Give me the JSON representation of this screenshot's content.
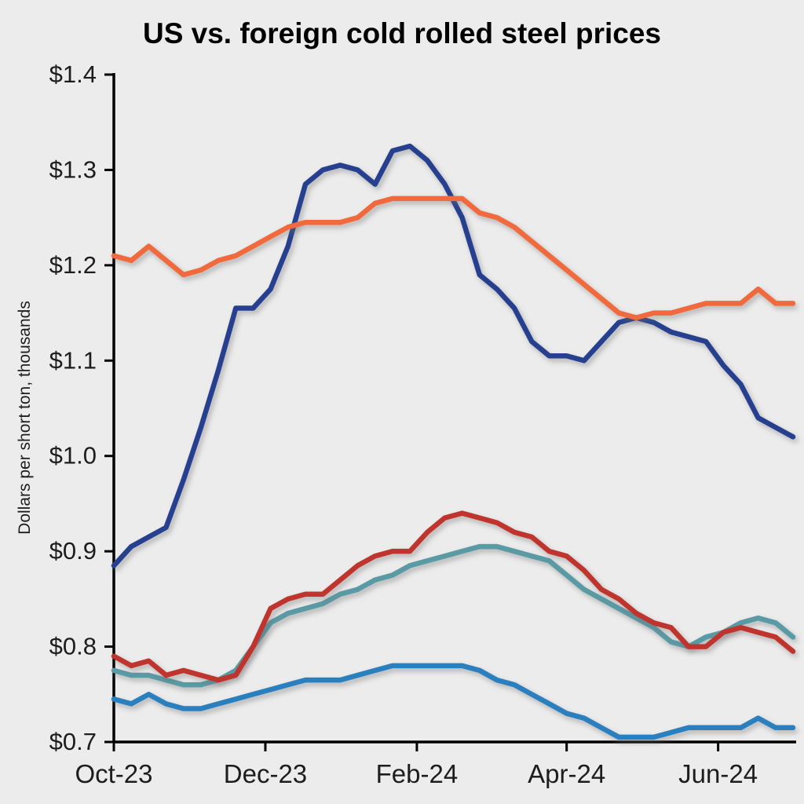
{
  "chart_data": {
    "type": "line",
    "title": "US vs. foreign cold rolled steel prices",
    "ylabel": "Dollars per short ton, thousands",
    "xlabel": "",
    "ylim": [
      0.7,
      1.4
    ],
    "x_range": [
      0,
      39
    ],
    "grid": false,
    "legend": "none",
    "y_ticks": [
      {
        "value": 0.7,
        "label": "$0.7"
      },
      {
        "value": 0.8,
        "label": "$0.8"
      },
      {
        "value": 0.9,
        "label": "$0.9"
      },
      {
        "value": 1.0,
        "label": "$1.0"
      },
      {
        "value": 1.1,
        "label": "$1.1"
      },
      {
        "value": 1.2,
        "label": "$1.2"
      },
      {
        "value": 1.3,
        "label": "$1.3"
      },
      {
        "value": 1.4,
        "label": "$1.4"
      }
    ],
    "x_ticks": [
      {
        "pos": 0,
        "label": "Oct-23"
      },
      {
        "pos": 8.7,
        "label": "Dec-23"
      },
      {
        "pos": 17.4,
        "label": "Feb-24"
      },
      {
        "pos": 26.0,
        "label": "Apr-24"
      },
      {
        "pos": 34.7,
        "label": "Jun-24"
      }
    ],
    "series": [
      {
        "name": "navy",
        "color": "#25408f",
        "values": [
          0.885,
          0.905,
          0.915,
          0.925,
          0.975,
          1.03,
          1.09,
          1.155,
          1.155,
          1.175,
          1.22,
          1.285,
          1.3,
          1.305,
          1.3,
          1.285,
          1.32,
          1.325,
          1.31,
          1.285,
          1.25,
          1.19,
          1.175,
          1.155,
          1.12,
          1.105,
          1.105,
          1.1,
          1.12,
          1.14,
          1.145,
          1.14,
          1.13,
          1.125,
          1.12,
          1.095,
          1.075,
          1.04,
          1.03,
          1.02
        ]
      },
      {
        "name": "orange",
        "color": "#f06a3d",
        "values": [
          1.21,
          1.205,
          1.22,
          1.205,
          1.19,
          1.195,
          1.205,
          1.21,
          1.22,
          1.23,
          1.24,
          1.245,
          1.245,
          1.245,
          1.25,
          1.265,
          1.27,
          1.27,
          1.27,
          1.27,
          1.27,
          1.255,
          1.25,
          1.24,
          1.225,
          1.21,
          1.195,
          1.18,
          1.165,
          1.15,
          1.145,
          1.15,
          1.15,
          1.155,
          1.16,
          1.16,
          1.16,
          1.175,
          1.16,
          1.16
        ]
      },
      {
        "name": "teal",
        "color": "#5a9aa5",
        "values": [
          0.775,
          0.77,
          0.77,
          0.765,
          0.76,
          0.76,
          0.765,
          0.775,
          0.8,
          0.825,
          0.835,
          0.84,
          0.845,
          0.855,
          0.86,
          0.87,
          0.875,
          0.885,
          0.89,
          0.895,
          0.9,
          0.905,
          0.905,
          0.9,
          0.895,
          0.89,
          0.875,
          0.86,
          0.85,
          0.84,
          0.83,
          0.82,
          0.805,
          0.8,
          0.81,
          0.815,
          0.825,
          0.83,
          0.825,
          0.81
        ]
      },
      {
        "name": "red",
        "color": "#bf362e",
        "values": [
          0.79,
          0.78,
          0.785,
          0.77,
          0.775,
          0.77,
          0.765,
          0.77,
          0.8,
          0.84,
          0.85,
          0.855,
          0.855,
          0.87,
          0.885,
          0.895,
          0.9,
          0.9,
          0.92,
          0.935,
          0.94,
          0.935,
          0.93,
          0.92,
          0.915,
          0.9,
          0.895,
          0.88,
          0.86,
          0.85,
          0.835,
          0.825,
          0.82,
          0.8,
          0.8,
          0.815,
          0.82,
          0.815,
          0.81,
          0.795
        ]
      },
      {
        "name": "light-blue",
        "color": "#2a7fbf",
        "values": [
          0.745,
          0.74,
          0.75,
          0.74,
          0.735,
          0.735,
          0.74,
          0.745,
          0.75,
          0.755,
          0.76,
          0.765,
          0.765,
          0.765,
          0.77,
          0.775,
          0.78,
          0.78,
          0.78,
          0.78,
          0.78,
          0.775,
          0.765,
          0.76,
          0.75,
          0.74,
          0.73,
          0.725,
          0.715,
          0.705,
          0.705,
          0.705,
          0.71,
          0.715,
          0.715,
          0.715,
          0.715,
          0.725,
          0.715,
          0.715
        ]
      }
    ]
  },
  "colors": {
    "background": "#ececec",
    "axis": "#000000",
    "tick_label": "#1d1d1d"
  }
}
